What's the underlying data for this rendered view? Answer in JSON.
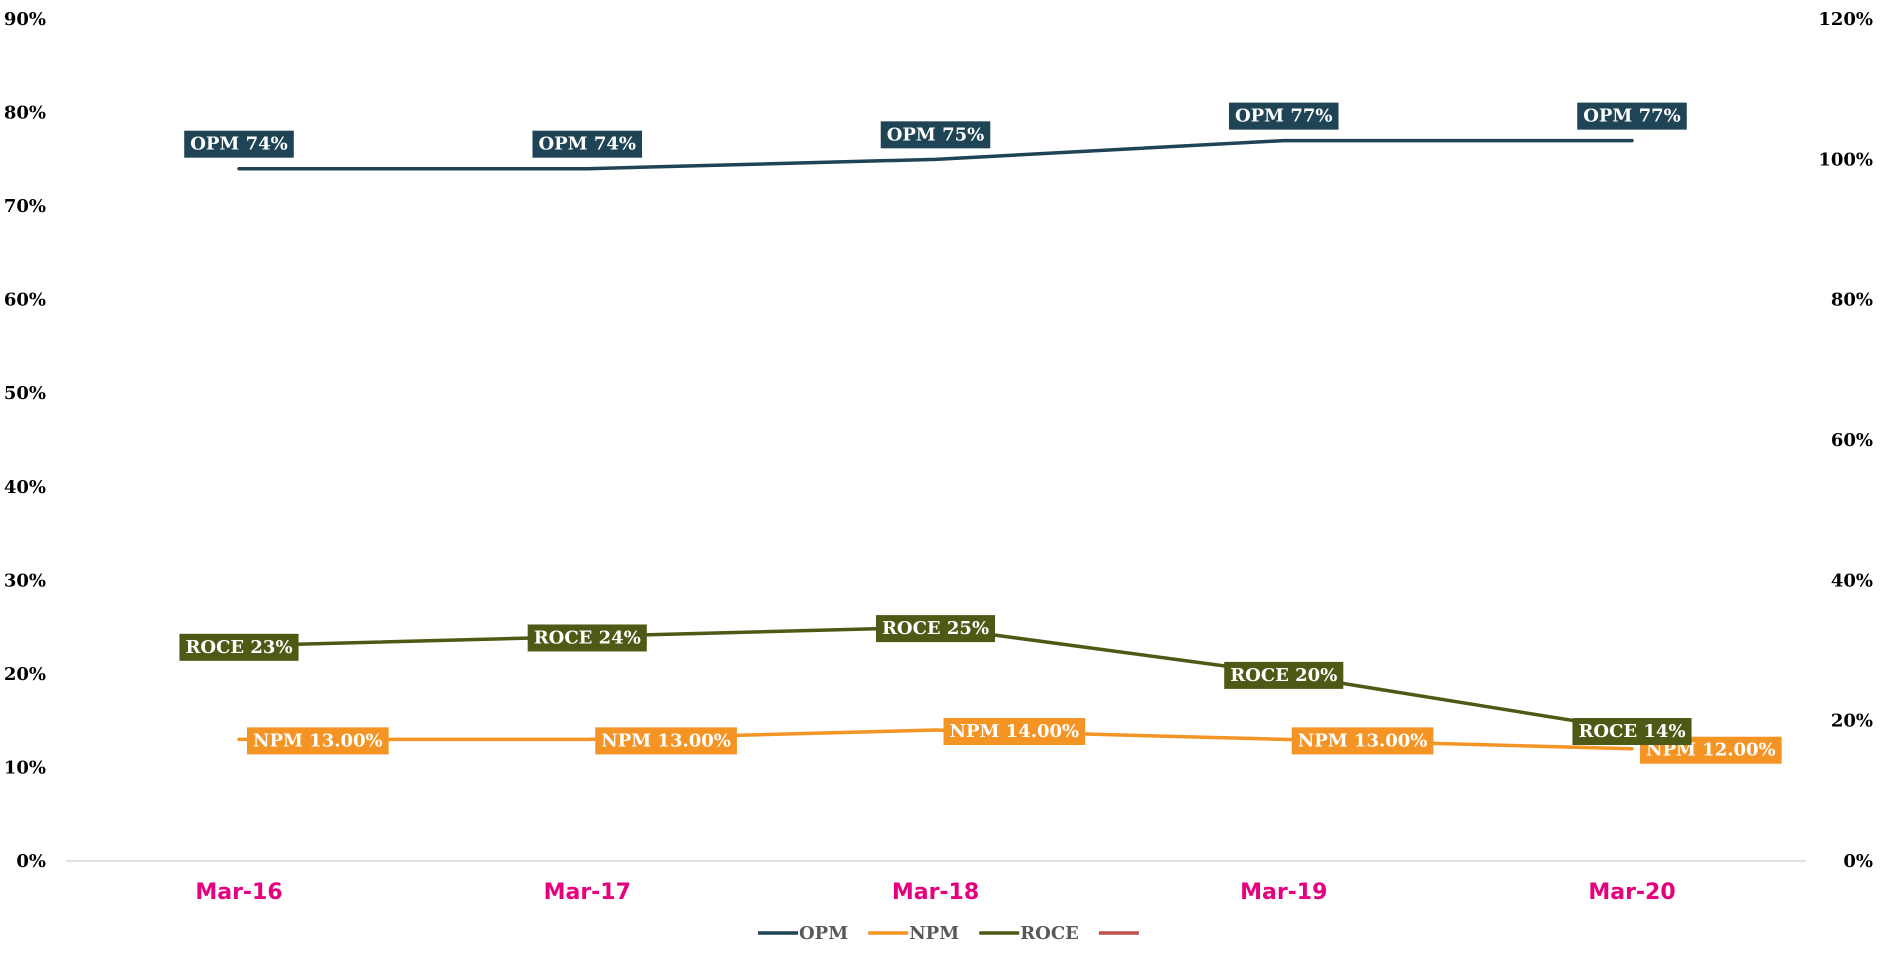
{
  "chart_data": {
    "type": "line",
    "title": "",
    "categories": [
      "Mar-16",
      "Mar-17",
      "Mar-18",
      "Mar-19",
      "Mar-20"
    ],
    "y_left": {
      "min": 0,
      "max": 90,
      "step": 10,
      "tick_labels": [
        "0%",
        "10%",
        "20%",
        "30%",
        "40%",
        "50%",
        "60%",
        "70%",
        "80%",
        "90%"
      ]
    },
    "y_right": {
      "min": 0,
      "max": 120,
      "step": 20,
      "tick_labels": [
        "0%",
        "20%",
        "40%",
        "60%",
        "80%",
        "100%",
        "120%"
      ]
    },
    "series": [
      {
        "name": "OPM",
        "axis": "left",
        "color": "#1f4455",
        "values": [
          74,
          74,
          75,
          77,
          77
        ],
        "labels": [
          "OPM 74%",
          "OPM 74%",
          "OPM 75%",
          "OPM 77%",
          "OPM 77%"
        ]
      },
      {
        "name": "NPM",
        "axis": "left",
        "color": "#f39424",
        "values": [
          13,
          13,
          14,
          13,
          12
        ],
        "labels": [
          "NPM 13.00%",
          "NPM 13.00%",
          "NPM 14.00%",
          "NPM 13.00%",
          "NPM 12.00%"
        ]
      },
      {
        "name": "ROCE",
        "axis": "left",
        "color": "#4d5a15",
        "values": [
          23,
          24,
          25,
          20,
          14
        ],
        "labels": [
          "ROCE 23%",
          "ROCE 24%",
          "ROCE 25%",
          "ROCE 20%",
          "ROCE 14%"
        ]
      }
    ],
    "legend": {
      "position": "bottom",
      "entries": [
        {
          "label": "OPM",
          "color": "#1f4455"
        },
        {
          "label": "NPM",
          "color": "#f39424"
        },
        {
          "label": "ROCE",
          "color": "#4d5a15"
        },
        {
          "label": "",
          "color": "#c0504d"
        }
      ]
    },
    "category_color": "#e6007e",
    "grid": false
  }
}
